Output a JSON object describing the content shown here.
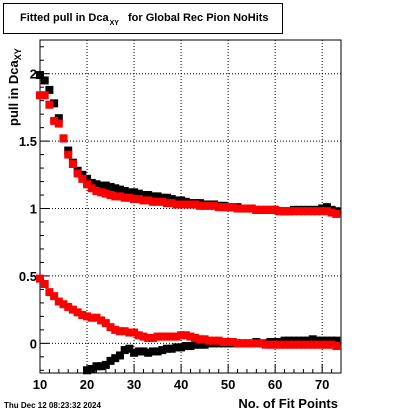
{
  "chart_data": {
    "type": "scatter",
    "title": {
      "prefix": "Fitted pull in Dca",
      "subscript": "XY",
      "suffix": "for Global Rec Pion NoHits"
    },
    "xlabel": "No. of Fit Points",
    "ylabel": {
      "prefix": "pull in Dca",
      "subscript": "XY"
    },
    "xlim": [
      10,
      74
    ],
    "ylim": [
      -0.22,
      2.25
    ],
    "xticks": [
      10,
      20,
      30,
      40,
      50,
      60,
      70
    ],
    "yticks": [
      0,
      0.5,
      1,
      1.5,
      2
    ],
    "ytick_labels": [
      "0",
      "0.5",
      "1",
      "1.5",
      "2"
    ],
    "grid": true,
    "series": [
      {
        "color": "#000000",
        "x": [
          10,
          11,
          12,
          13,
          14,
          15,
          16,
          17,
          18,
          19,
          20,
          21,
          22,
          23,
          24,
          25,
          26,
          27,
          28,
          29,
          30,
          31,
          32,
          33,
          34,
          35,
          36,
          37,
          38,
          39,
          40,
          41,
          42,
          43,
          44,
          45,
          46,
          47,
          48,
          49,
          50,
          51,
          52,
          53,
          54,
          55,
          56,
          57,
          58,
          59,
          60,
          61,
          62,
          63,
          64,
          65,
          66,
          67,
          68,
          69,
          70,
          71,
          72,
          73
        ],
        "y": [
          1.99,
          1.95,
          1.88,
          1.78,
          1.67,
          1.52,
          1.43,
          1.34,
          1.28,
          1.25,
          1.22,
          1.19,
          1.18,
          1.17,
          1.17,
          1.16,
          1.15,
          1.14,
          1.13,
          1.12,
          1.12,
          1.11,
          1.1,
          1.1,
          1.09,
          1.09,
          1.08,
          1.08,
          1.07,
          1.06,
          1.06,
          1.05,
          1.04,
          1.04,
          1.04,
          1.03,
          1.03,
          1.03,
          1.02,
          1.02,
          1.01,
          1.01,
          1.01,
          1.0,
          1.0,
          1.0,
          0.99,
          0.99,
          0.99,
          0.99,
          0.99,
          0.98,
          0.98,
          0.98,
          0.99,
          0.99,
          0.99,
          0.99,
          0.99,
          0.99,
          1.0,
          1.01,
          0.99,
          0.98
        ]
      },
      {
        "color": "#ff0000",
        "x": [
          10,
          11,
          12,
          13,
          14,
          15,
          16,
          17,
          18,
          19,
          20,
          21,
          22,
          23,
          24,
          25,
          26,
          27,
          28,
          29,
          30,
          31,
          32,
          33,
          34,
          35,
          36,
          37,
          38,
          39,
          40,
          41,
          42,
          43,
          44,
          45,
          46,
          47,
          48,
          49,
          50,
          51,
          52,
          53,
          54,
          55,
          56,
          57,
          58,
          59,
          60,
          61,
          62,
          63,
          64,
          65,
          66,
          67,
          68,
          69,
          70,
          71,
          72,
          73
        ],
        "y": [
          1.84,
          1.84,
          1.77,
          1.65,
          1.63,
          1.52,
          1.4,
          1.33,
          1.26,
          1.22,
          1.18,
          1.15,
          1.13,
          1.12,
          1.11,
          1.1,
          1.09,
          1.09,
          1.08,
          1.08,
          1.07,
          1.07,
          1.06,
          1.06,
          1.05,
          1.05,
          1.05,
          1.04,
          1.04,
          1.03,
          1.03,
          1.03,
          1.03,
          1.03,
          1.02,
          1.02,
          1.02,
          1.02,
          1.01,
          1.01,
          1.01,
          1.01,
          1.0,
          1.0,
          1.0,
          1.0,
          0.99,
          0.99,
          0.99,
          0.99,
          0.99,
          0.98,
          0.98,
          0.98,
          0.98,
          0.98,
          0.98,
          0.98,
          0.98,
          0.98,
          0.98,
          0.98,
          0.97,
          0.96
        ]
      },
      {
        "color": "#000000",
        "x": [
          20,
          21,
          22,
          23,
          24,
          25,
          26,
          27,
          28,
          29,
          30,
          31,
          32,
          33,
          34,
          35,
          36,
          37,
          38,
          39,
          40,
          41,
          42,
          43,
          44,
          45,
          46,
          47,
          48,
          49,
          50,
          51,
          52,
          53,
          54,
          55,
          56,
          57,
          58,
          59,
          60,
          61,
          62,
          63,
          64,
          65,
          66,
          67,
          68,
          69,
          70,
          71,
          72,
          73
        ],
        "y": [
          -0.2,
          -0.19,
          -0.17,
          -0.17,
          -0.16,
          -0.13,
          -0.11,
          -0.09,
          -0.05,
          -0.04,
          -0.07,
          -0.06,
          -0.06,
          -0.07,
          -0.06,
          -0.06,
          -0.05,
          -0.04,
          -0.04,
          -0.03,
          -0.03,
          -0.02,
          -0.02,
          -0.01,
          -0.01,
          -0.01,
          0.0,
          0.0,
          0.0,
          0.0,
          0.0,
          0.0,
          0.0,
          0.0,
          0.0,
          0.0,
          0.01,
          0.0,
          0.0,
          0.01,
          0.01,
          0.01,
          0.02,
          0.02,
          0.02,
          0.02,
          0.02,
          0.02,
          0.03,
          0.02,
          0.02,
          0.02,
          0.02,
          0.02
        ]
      },
      {
        "color": "#ff0000",
        "x": [
          10,
          11,
          12,
          13,
          14,
          15,
          16,
          17,
          18,
          19,
          20,
          21,
          22,
          23,
          24,
          25,
          26,
          27,
          28,
          29,
          30,
          31,
          32,
          33,
          34,
          35,
          36,
          37,
          38,
          39,
          40,
          41,
          42,
          43,
          44,
          45,
          46,
          47,
          48,
          49,
          50,
          51,
          52,
          53,
          54,
          55,
          56,
          57,
          58,
          59,
          60,
          61,
          62,
          63,
          64,
          65,
          66,
          67,
          68,
          69,
          70,
          71,
          72,
          73
        ],
        "y": [
          0.48,
          0.44,
          0.38,
          0.35,
          0.31,
          0.29,
          0.27,
          0.25,
          0.23,
          0.21,
          0.2,
          0.19,
          0.19,
          0.17,
          0.15,
          0.12,
          0.1,
          0.09,
          0.09,
          0.08,
          0.08,
          0.06,
          0.05,
          0.04,
          0.04,
          0.05,
          0.05,
          0.05,
          0.05,
          0.05,
          0.06,
          0.06,
          0.05,
          0.04,
          0.03,
          0.03,
          0.02,
          0.02,
          0.02,
          0.01,
          0.01,
          0.01,
          0.0,
          0.0,
          0.0,
          0.0,
          0.0,
          0.0,
          -0.01,
          -0.01,
          -0.01,
          -0.01,
          -0.01,
          -0.01,
          -0.01,
          -0.01,
          -0.01,
          -0.01,
          -0.01,
          -0.01,
          -0.01,
          -0.01,
          -0.01,
          -0.02
        ]
      }
    ]
  },
  "footer": {
    "datestamp": "Thu Dec 12 08:23:32 2024"
  }
}
